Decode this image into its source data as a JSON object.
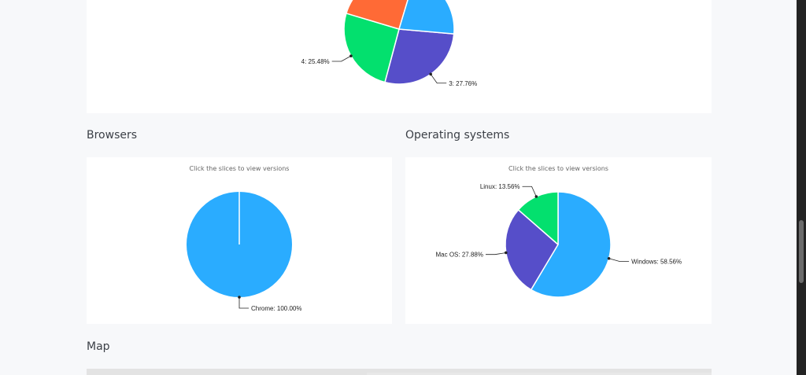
{
  "sections": {
    "browsers_title": "Browsers",
    "os_title": "Operating systems",
    "map_title": "Map"
  },
  "hint": "Click the slices to view versions",
  "colors": {
    "blue": "#2aacff",
    "purple": "#564ec9",
    "green": "#03e06e",
    "orange": "#ff6a36"
  },
  "chart_data": [
    {
      "type": "pie",
      "title": "",
      "slices": [
        {
          "label": "3",
          "value": 27.76,
          "color": "#564ec9",
          "show_label": true
        },
        {
          "label": "4",
          "value": 25.48,
          "color": "#03e06e",
          "show_label": true
        },
        {
          "label": "",
          "value": 25.0,
          "color": "#ff6a36",
          "show_label": false
        },
        {
          "label": "",
          "value": 21.76,
          "color": "#2aacff",
          "show_label": false
        }
      ]
    },
    {
      "type": "pie",
      "title": "Click the slices to view versions",
      "slices": [
        {
          "label": "Chrome",
          "value": 100.0,
          "color": "#2aacff",
          "show_label": true
        }
      ]
    },
    {
      "type": "pie",
      "title": "Click the slices to view versions",
      "slices": [
        {
          "label": "Windows",
          "value": 58.56,
          "color": "#2aacff",
          "show_label": true
        },
        {
          "label": "Mac OS",
          "value": 27.88,
          "color": "#564ec9",
          "show_label": true
        },
        {
          "label": "Linux",
          "value": 13.56,
          "color": "#03e06e",
          "show_label": true
        }
      ]
    }
  ]
}
